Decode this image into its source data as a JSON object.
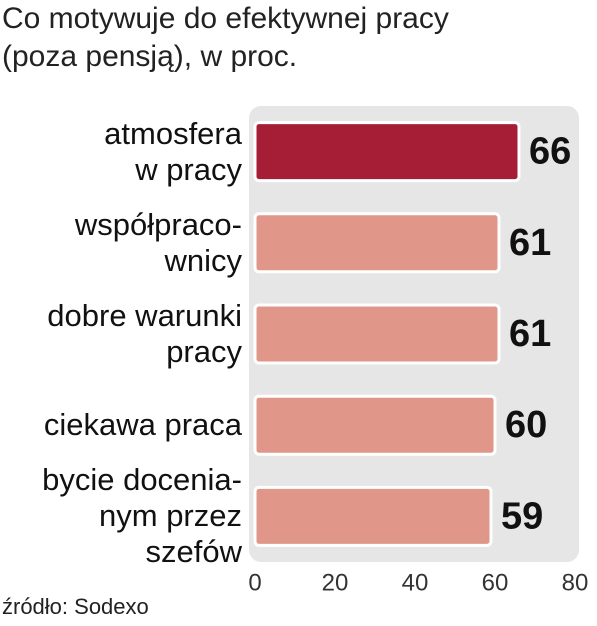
{
  "chart_data": {
    "type": "bar",
    "orientation": "horizontal",
    "title": [
      "Co motywuje do efektywnej pracy",
      "(poza pensją), w proc."
    ],
    "categories": [
      "atmosfera\nw pracy",
      "współpraco-\nwnicy",
      "dobre warunki\npracy",
      "ciekawa praca",
      "bycie docenia-\nnym przez\nszefów"
    ],
    "values": [
      66,
      61,
      61,
      60,
      59
    ],
    "colors": [
      "#a51e36",
      "#e0978a",
      "#e0978a",
      "#e0978a",
      "#e0978a"
    ],
    "xlim": [
      0,
      80
    ],
    "xticks": [
      0,
      20,
      40,
      60,
      80
    ],
    "source": "źródło: Sodexo"
  }
}
